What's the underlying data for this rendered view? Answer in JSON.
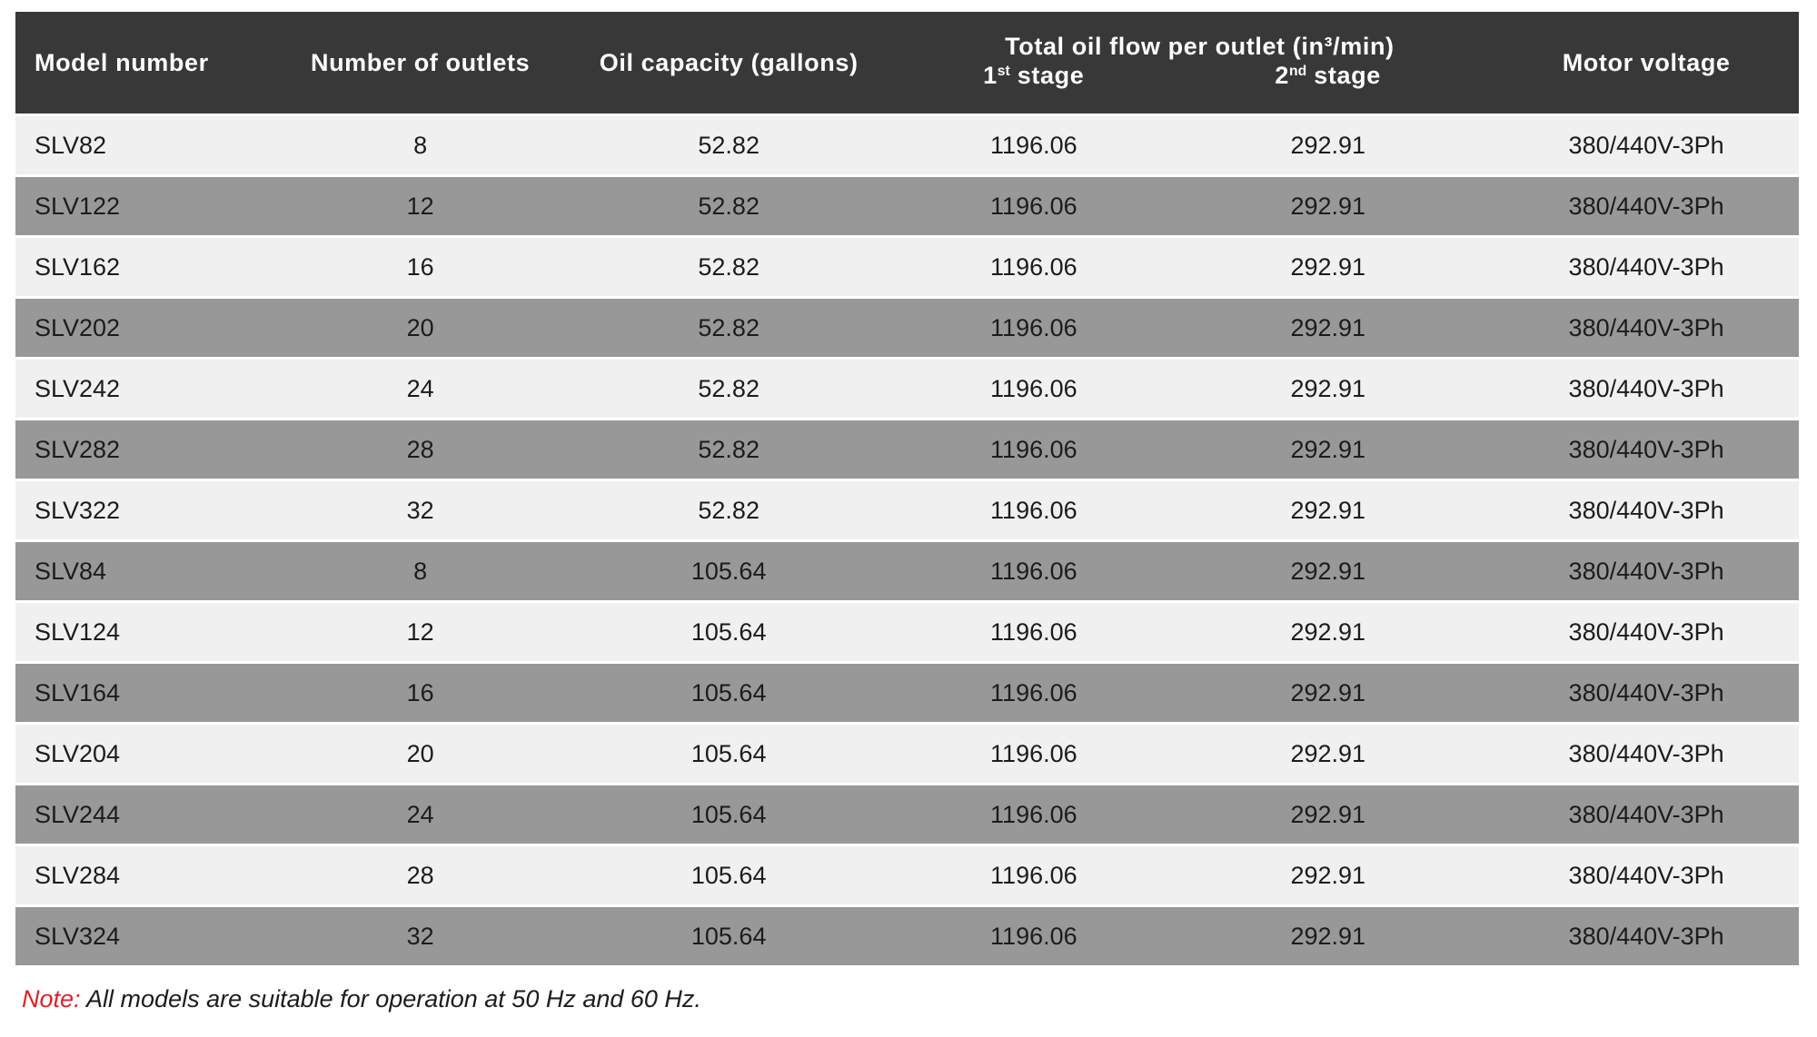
{
  "table": {
    "columns": {
      "model": "Model number",
      "outlets": "Number of outlets",
      "capacity": "Oil capacity (gallons)",
      "flow_group": "Total oil flow per outlet (in³/min)",
      "stage1": {
        "num": "1",
        "sup": "st",
        "label": " stage"
      },
      "stage2": {
        "num": "2",
        "sup": "nd",
        "label": " stage"
      },
      "voltage": "Motor voltage"
    },
    "rows": [
      {
        "model": "SLV82",
        "outlets": "8",
        "capacity": "52.82",
        "stage1_flow": "1196.06",
        "stage2_flow": "292.91",
        "voltage": "380/440V-3Ph"
      },
      {
        "model": "SLV122",
        "outlets": "12",
        "capacity": "52.82",
        "stage1_flow": "1196.06",
        "stage2_flow": "292.91",
        "voltage": "380/440V-3Ph"
      },
      {
        "model": "SLV162",
        "outlets": "16",
        "capacity": "52.82",
        "stage1_flow": "1196.06",
        "stage2_flow": "292.91",
        "voltage": "380/440V-3Ph"
      },
      {
        "model": "SLV202",
        "outlets": "20",
        "capacity": "52.82",
        "stage1_flow": "1196.06",
        "stage2_flow": "292.91",
        "voltage": "380/440V-3Ph"
      },
      {
        "model": "SLV242",
        "outlets": "24",
        "capacity": "52.82",
        "stage1_flow": "1196.06",
        "stage2_flow": "292.91",
        "voltage": "380/440V-3Ph"
      },
      {
        "model": "SLV282",
        "outlets": "28",
        "capacity": "52.82",
        "stage1_flow": "1196.06",
        "stage2_flow": "292.91",
        "voltage": "380/440V-3Ph"
      },
      {
        "model": "SLV322",
        "outlets": "32",
        "capacity": "52.82",
        "stage1_flow": "1196.06",
        "stage2_flow": "292.91",
        "voltage": "380/440V-3Ph"
      },
      {
        "model": "SLV84",
        "outlets": "8",
        "capacity": "105.64",
        "stage1_flow": "1196.06",
        "stage2_flow": "292.91",
        "voltage": "380/440V-3Ph"
      },
      {
        "model": "SLV124",
        "outlets": "12",
        "capacity": "105.64",
        "stage1_flow": "1196.06",
        "stage2_flow": "292.91",
        "voltage": "380/440V-3Ph"
      },
      {
        "model": "SLV164",
        "outlets": "16",
        "capacity": "105.64",
        "stage1_flow": "1196.06",
        "stage2_flow": "292.91",
        "voltage": "380/440V-3Ph"
      },
      {
        "model": "SLV204",
        "outlets": "20",
        "capacity": "105.64",
        "stage1_flow": "1196.06",
        "stage2_flow": "292.91",
        "voltage": "380/440V-3Ph"
      },
      {
        "model": "SLV244",
        "outlets": "24",
        "capacity": "105.64",
        "stage1_flow": "1196.06",
        "stage2_flow": "292.91",
        "voltage": "380/440V-3Ph"
      },
      {
        "model": "SLV284",
        "outlets": "28",
        "capacity": "105.64",
        "stage1_flow": "1196.06",
        "stage2_flow": "292.91",
        "voltage": "380/440V-3Ph"
      },
      {
        "model": "SLV324",
        "outlets": "32",
        "capacity": "105.64",
        "stage1_flow": "1196.06",
        "stage2_flow": "292.91",
        "voltage": "380/440V-3Ph"
      }
    ]
  },
  "note": {
    "label": "Note:",
    "text": "All models are suitable for operation at 50 Hz and 60 Hz."
  },
  "colors": {
    "header_bg": "#383838",
    "header_text": "#ffffff",
    "row_light": "#f0f0f0",
    "row_dark": "#989898",
    "body_text": "#1c1c1c",
    "note_red": "#e32028"
  }
}
